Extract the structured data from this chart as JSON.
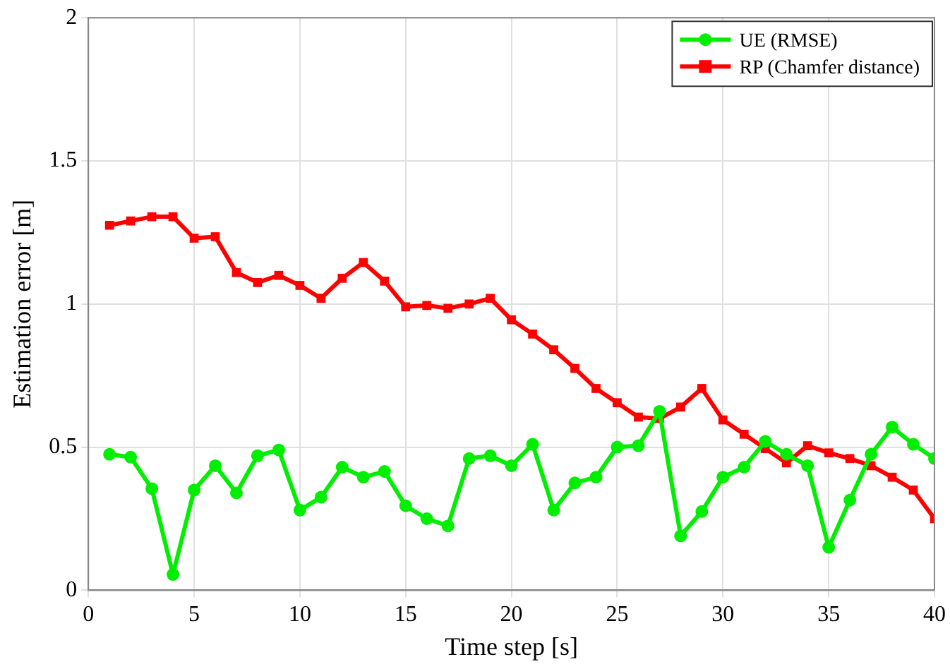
{
  "chart_data": {
    "type": "line",
    "xlabel": "Time step [s]",
    "ylabel": "Estimation error [m]",
    "x": [
      1,
      2,
      3,
      4,
      5,
      6,
      7,
      8,
      9,
      10,
      11,
      12,
      13,
      14,
      15,
      16,
      17,
      18,
      19,
      20,
      21,
      22,
      23,
      24,
      25,
      26,
      27,
      28,
      29,
      30,
      31,
      32,
      33,
      34,
      35,
      36,
      37,
      38,
      39,
      40
    ],
    "series": [
      {
        "name": "UE (RMSE)",
        "color": "#00ee00",
        "marker": "circle",
        "values": [
          0.475,
          0.465,
          0.355,
          0.055,
          0.35,
          0.435,
          0.34,
          0.47,
          0.49,
          0.28,
          0.325,
          0.43,
          0.395,
          0.415,
          0.295,
          0.25,
          0.225,
          0.46,
          0.47,
          0.435,
          0.51,
          0.28,
          0.375,
          0.395,
          0.5,
          0.505,
          0.625,
          0.19,
          0.275,
          0.395,
          0.43,
          0.52,
          0.475,
          0.435,
          0.15,
          0.315,
          0.475,
          0.57,
          0.51,
          0.46
        ]
      },
      {
        "name": "RP (Chamfer distance)",
        "color": "#ff0000",
        "marker": "square",
        "values": [
          1.275,
          1.29,
          1.305,
          1.305,
          1.23,
          1.235,
          1.11,
          1.075,
          1.1,
          1.065,
          1.02,
          1.09,
          1.145,
          1.08,
          0.99,
          0.995,
          0.985,
          1.0,
          1.02,
          0.945,
          0.895,
          0.84,
          0.775,
          0.705,
          0.655,
          0.605,
          0.6,
          0.64,
          0.705,
          0.595,
          0.545,
          0.495,
          0.445,
          0.505,
          0.48,
          0.46,
          0.435,
          0.395,
          0.35,
          0.25
        ]
      }
    ],
    "xlim": [
      0,
      40
    ],
    "xticks": [
      0,
      5,
      10,
      15,
      20,
      25,
      30,
      35,
      40
    ],
    "ylim": [
      0,
      2
    ],
    "yticks": [
      0,
      0.5,
      1,
      1.5,
      2
    ],
    "grid": true,
    "legend": "top right",
    "line_style": "solid"
  }
}
